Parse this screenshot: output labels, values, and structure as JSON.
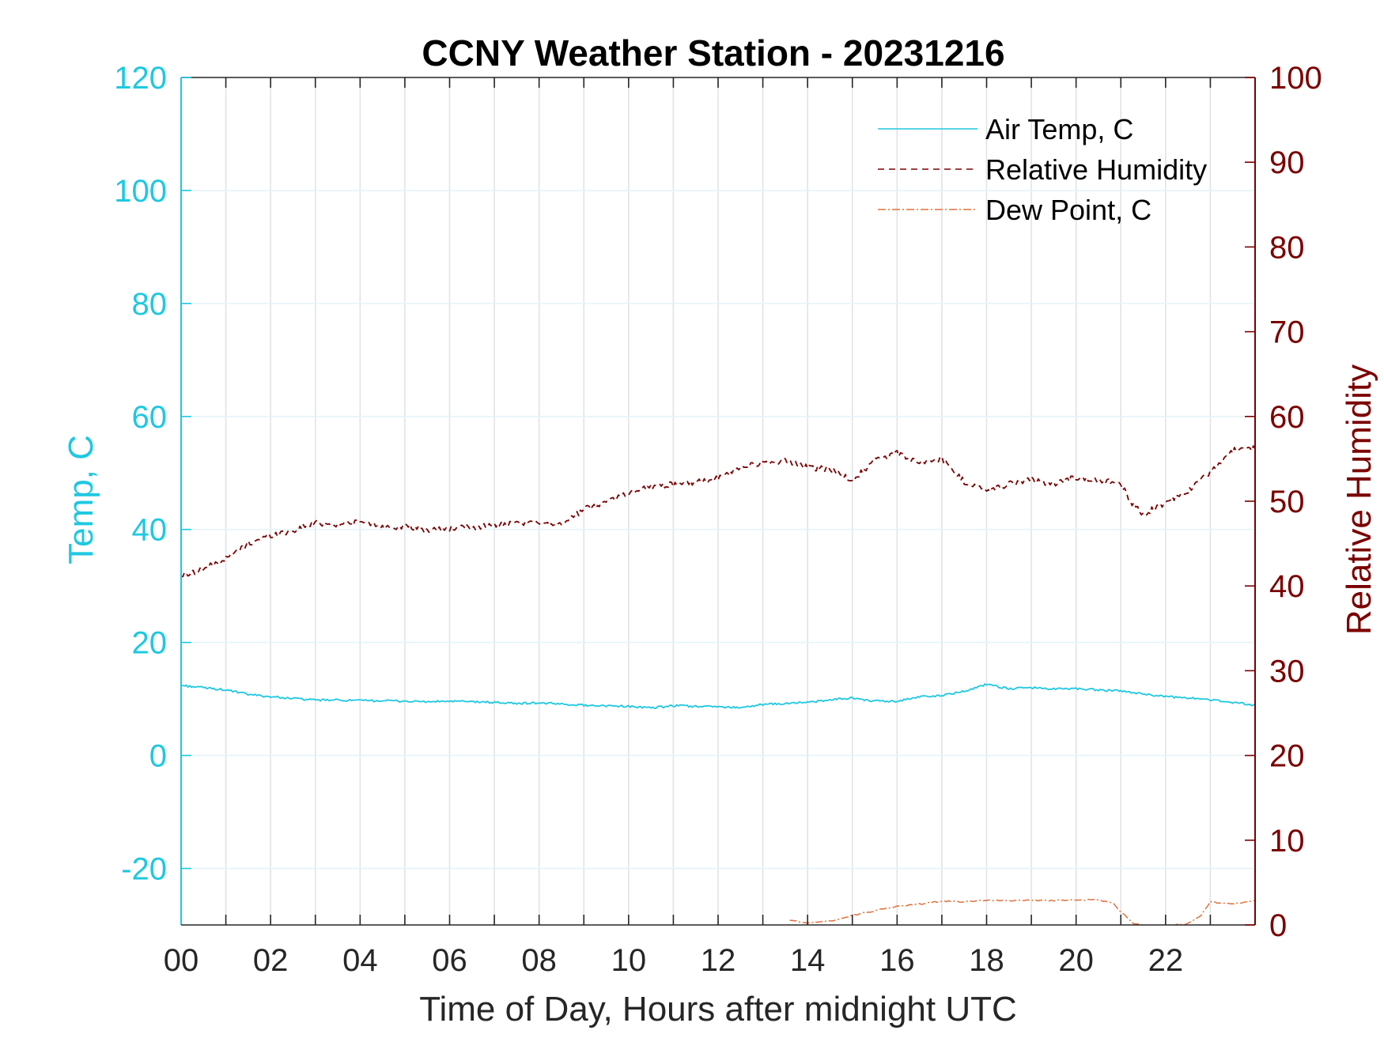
{
  "colors": {
    "temp_axis": "#1ec8e1",
    "rh_axis": "#7b0000",
    "dew_point": "#e0703a",
    "grid": "#dfe4e8",
    "box": "#262626"
  },
  "chart_data": {
    "type": "line",
    "title": "CCNY Weather Station - 20231216",
    "xlabel": "Time of Day, Hours after midnight UTC",
    "ylabel_left": "Temp, C",
    "ylabel_right": "Relative Humidity",
    "xlim": [
      0,
      24
    ],
    "ylim_left": [
      -30,
      120
    ],
    "ylim_right": [
      0,
      100
    ],
    "x_ticks": [
      0,
      2,
      4,
      6,
      8,
      10,
      12,
      14,
      16,
      18,
      20,
      22
    ],
    "x_tick_labels": [
      "00",
      "02",
      "04",
      "06",
      "08",
      "10",
      "12",
      "14",
      "16",
      "18",
      "20",
      "22"
    ],
    "y_left_ticks": [
      -20,
      0,
      20,
      40,
      60,
      80,
      100,
      120
    ],
    "y_left_tick_labels": [
      "-20",
      "0",
      "20",
      "40",
      "60",
      "80",
      "100",
      "120"
    ],
    "y_right_ticks": [
      0,
      10,
      20,
      30,
      40,
      50,
      60,
      70,
      80,
      90,
      100
    ],
    "y_right_tick_labels": [
      "0",
      "10",
      "20",
      "30",
      "40",
      "50",
      "60",
      "70",
      "80",
      "90",
      "100"
    ],
    "grid": true,
    "legend_position": "top-right",
    "series": [
      {
        "name": "Air Temp, C",
        "axis": "left",
        "style": "solid",
        "color": "#1ec8e1",
        "x": [
          0,
          0.5,
          1,
          1.5,
          2,
          2.5,
          3,
          3.5,
          4,
          4.5,
          5,
          5.5,
          6,
          6.5,
          7,
          7.5,
          8,
          8.5,
          9,
          9.5,
          10,
          10.5,
          11,
          11.5,
          12,
          12.5,
          13,
          13.5,
          14,
          14.5,
          15,
          15.5,
          16,
          16.5,
          17,
          17.5,
          18,
          18.5,
          19,
          19.5,
          20,
          20.5,
          21,
          21.5,
          22,
          22.5,
          23,
          23.5,
          24
        ],
        "values": [
          12.4,
          12.0,
          11.6,
          10.8,
          10.4,
          10.1,
          9.8,
          9.8,
          9.7,
          9.7,
          9.6,
          9.5,
          9.6,
          9.5,
          9.4,
          9.2,
          9.3,
          9.1,
          8.9,
          8.8,
          8.7,
          8.4,
          8.8,
          8.7,
          8.6,
          8.5,
          9.0,
          9.2,
          9.4,
          9.8,
          10.2,
          9.6,
          9.6,
          10.4,
          10.6,
          11.4,
          12.6,
          11.8,
          12.0,
          11.8,
          11.8,
          11.6,
          11.4,
          10.9,
          10.4,
          10.2,
          9.9,
          9.4,
          8.9
        ]
      },
      {
        "name": "Relative Humidity",
        "axis": "right",
        "style": "dashed",
        "color": "#7b0000",
        "x": [
          0,
          0.5,
          1,
          1.5,
          2,
          2.5,
          3,
          3.5,
          4,
          4.5,
          5,
          5.5,
          6,
          6.5,
          7,
          7.5,
          8,
          8.5,
          9,
          9.5,
          10,
          10.5,
          11,
          11.5,
          12,
          12.5,
          13,
          13.5,
          14,
          14.5,
          15,
          15.5,
          16,
          16.5,
          17,
          17.5,
          18,
          18.5,
          19,
          19.5,
          20,
          20.5,
          21,
          21.25,
          21.5,
          22,
          22.5,
          23,
          23.5,
          24
        ],
        "values": [
          41.2,
          42.0,
          43.2,
          45.0,
          46.0,
          46.5,
          47.5,
          47.2,
          47.6,
          47.0,
          47.0,
          46.6,
          46.8,
          46.9,
          47.2,
          47.3,
          47.5,
          47.3,
          49.0,
          50.0,
          51.0,
          51.8,
          52.0,
          52.2,
          52.7,
          54.0,
          54.5,
          54.8,
          54.0,
          53.8,
          52.5,
          54.8,
          55.7,
          54.5,
          55.0,
          52.3,
          51.2,
          52.0,
          52.6,
          52.0,
          52.8,
          52.6,
          52.0,
          49.8,
          48.5,
          49.8,
          51.2,
          53.5,
          56.0,
          56.2
        ]
      },
      {
        "name": "Dew Point, C",
        "axis": "left",
        "style": "dashdot",
        "color": "#e0703a",
        "x": [
          13.6,
          14.0,
          14.5,
          15.0,
          15.5,
          16.0,
          16.5,
          17.0,
          17.5,
          18.0,
          18.5,
          19.0,
          19.5,
          20.0,
          20.5,
          20.8,
          21.0,
          21.3,
          22.0,
          22.5,
          22.8,
          23.0,
          23.5,
          24.0
        ],
        "values": [
          -29.2,
          -29.6,
          -29.3,
          -28.3,
          -27.5,
          -26.7,
          -26.3,
          -25.8,
          -25.9,
          -25.6,
          -25.7,
          -25.6,
          -25.7,
          -25.5,
          -25.6,
          -26.0,
          -27.6,
          -29.9,
          -30.2,
          -29.8,
          -28.2,
          -25.9,
          -26.3,
          -25.7
        ]
      }
    ]
  }
}
